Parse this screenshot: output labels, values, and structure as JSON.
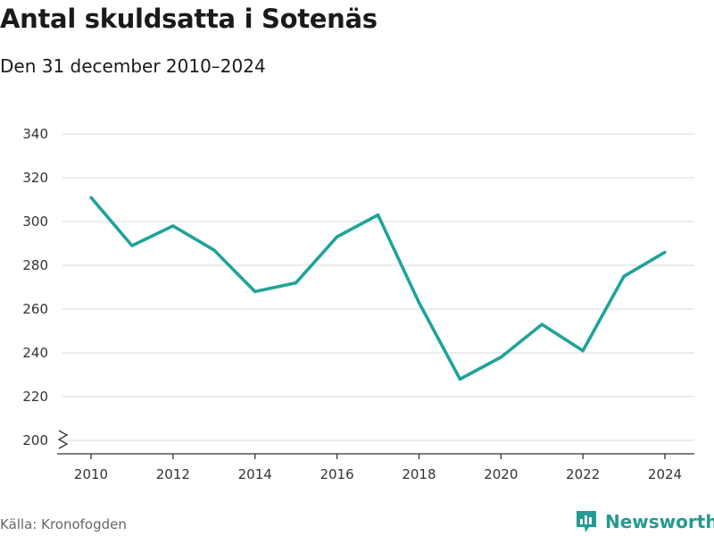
{
  "title": "Antal skuldsatta i Sotenäs",
  "subtitle": "Den 31 december 2010–2024",
  "source": "Källa: Kronofogden",
  "brand": {
    "name": "Newsworthy",
    "icon": "chart-bubble-icon",
    "color": "#239a92"
  },
  "chart_data": {
    "type": "line",
    "x": [
      2010,
      2011,
      2012,
      2013,
      2014,
      2015,
      2016,
      2017,
      2018,
      2019,
      2020,
      2021,
      2022,
      2023,
      2024
    ],
    "series": [
      {
        "values": [
          311,
          289,
          298,
          287,
          268,
          272,
          293,
          303,
          263,
          228,
          238,
          253,
          241,
          275,
          286
        ],
        "color": "#1fa39a"
      }
    ],
    "x_ticks": [
      2010,
      2012,
      2014,
      2016,
      2018,
      2020,
      2022,
      2024
    ],
    "y_ticks": [
      200,
      220,
      240,
      260,
      280,
      300,
      320,
      340
    ],
    "ylim": [
      200,
      340
    ],
    "y_axis_break": true,
    "grid": "horizontal",
    "xlabel": "",
    "ylabel": ""
  }
}
